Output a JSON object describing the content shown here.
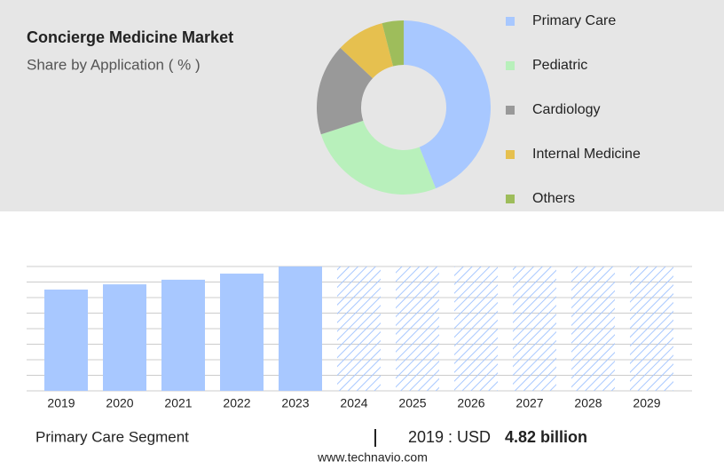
{
  "chart_data": [
    {
      "type": "donut",
      "title": "Concierge Medicine Market",
      "subtitle": "Share by Application ( % )",
      "categories": [
        "Primary Care",
        "Pediatric",
        "Cardiology",
        "Internal Medicine",
        "Others"
      ],
      "values": [
        44,
        26,
        17,
        9,
        4
      ],
      "colors": [
        "#a8c8ff",
        "#b8f0bb",
        "#999999",
        "#e6c04f",
        "#9ebd5b"
      ],
      "legend": "right"
    },
    {
      "type": "bar",
      "categories": [
        "2019",
        "2020",
        "2021",
        "2022",
        "2023",
        "2024",
        "2025",
        "2026",
        "2027",
        "2028",
        "2029"
      ],
      "values": [
        4.82,
        5.07,
        5.29,
        5.58,
        5.92,
        null,
        null,
        null,
        null,
        null,
        null
      ],
      "color": "#a8c8ff",
      "ylim": [
        0,
        5.92
      ],
      "yticks": [
        0,
        0.74,
        1.48,
        2.22,
        2.96,
        3.7,
        4.44,
        5.18,
        5.92
      ],
      "grid": true
    }
  ],
  "footer": {
    "segment": "Primary Care Segment",
    "year_label": "2019 : USD",
    "value": "4.82 billion",
    "source": "www.technavio.com"
  }
}
